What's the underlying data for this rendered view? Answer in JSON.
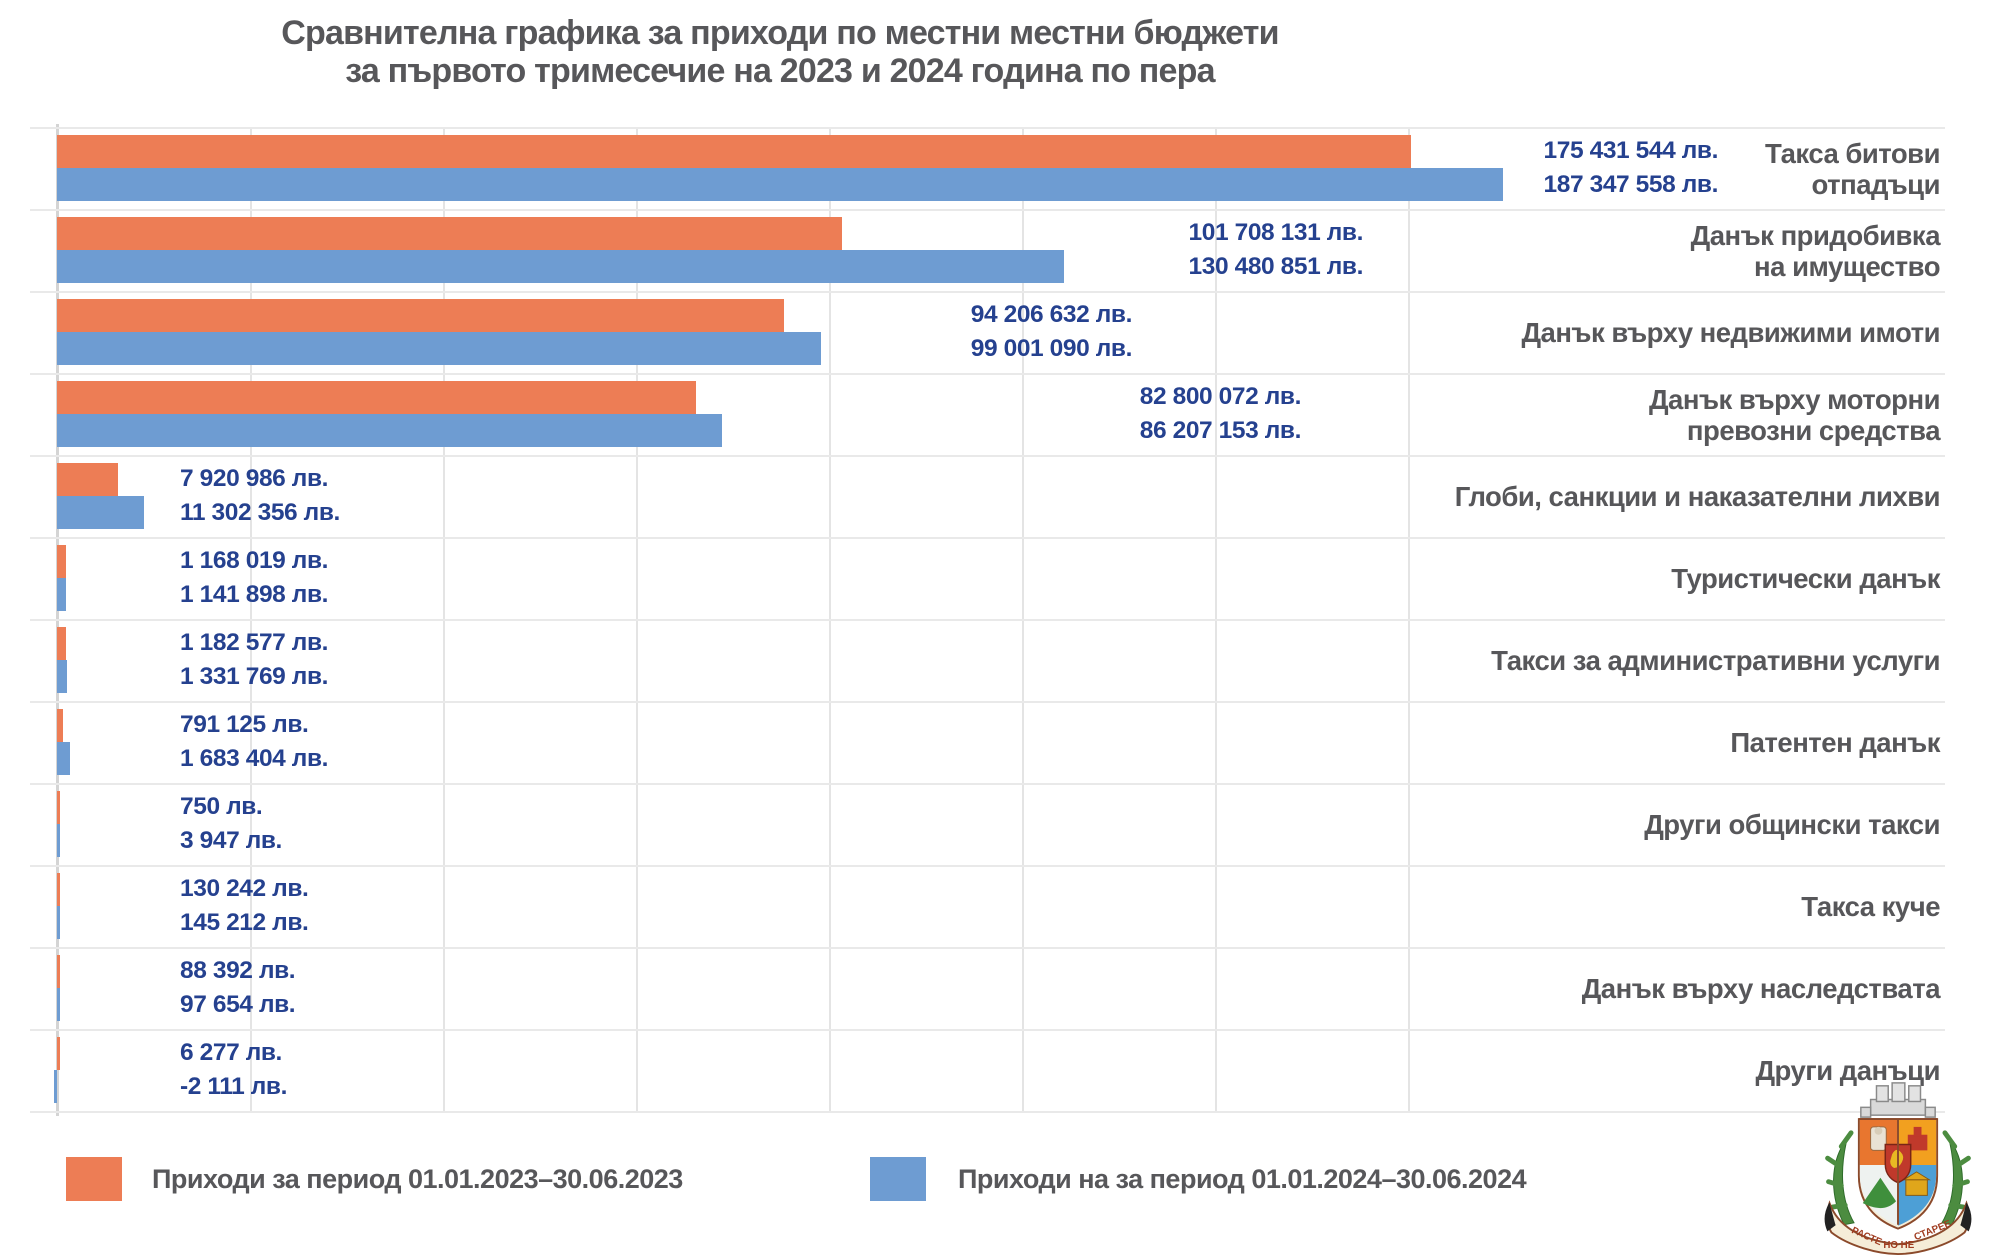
{
  "title": {
    "line1": "Сравнителна графика за приходи по местни местни бюджети",
    "line2": "за първото тримесечие на 2023 и 2024 година по пера"
  },
  "chart_data": {
    "type": "bar",
    "orientation": "horizontal",
    "unit": "лв.",
    "grid": true,
    "gridline_interval": 25000000,
    "xlim": [
      0,
      187347558
    ],
    "legend_position": "bottom",
    "categories": [
      {
        "name": "Такса битови отпадъци",
        "lines": [
          "Такса битови",
          "отпадъци"
        ]
      },
      {
        "name": "Данък придобивка на имущество",
        "lines": [
          "Данък придобивка",
          "на имущество"
        ]
      },
      {
        "name": "Данък върху недвижими имоти",
        "lines": [
          "Данък върху недвижими имоти"
        ]
      },
      {
        "name": "Данък върху моторни превозни средства",
        "lines": [
          "Данък върху моторни",
          "превозни средства"
        ]
      },
      {
        "name": "Глоби, санкции и наказателни лихви",
        "lines": [
          "Глоби, санкции и наказателни лихви"
        ]
      },
      {
        "name": "Туристически данък",
        "lines": [
          "Туристически данък"
        ]
      },
      {
        "name": "Такси за административни услуги",
        "lines": [
          "Такси за административни услуги"
        ]
      },
      {
        "name": "Патентен данък",
        "lines": [
          "Патентен данък"
        ]
      },
      {
        "name": "Други общински такси",
        "lines": [
          "Други общински такси"
        ]
      },
      {
        "name": "Такса куче",
        "lines": [
          "Такса куче"
        ]
      },
      {
        "name": "Данък върху наследствата",
        "lines": [
          "Данък върху наследствата"
        ]
      },
      {
        "name": "Други данъци",
        "lines": [
          "Други данъци"
        ]
      }
    ],
    "series": [
      {
        "name": "Приходи за период 01.01.2023–30.06.2023",
        "color": "#ED7D55",
        "values": [
          175431544,
          101708131,
          94206632,
          82800072,
          7920986,
          1168019,
          1182577,
          791125,
          750,
          130242,
          88392,
          6277
        ],
        "value_labels": [
          "175 431 544 лв.",
          "101 708 131 лв.",
          "94 206 632 лв.",
          "82 800 072 лв.",
          "7 920 986 лв.",
          "1 168 019 лв.",
          "1 182 577 лв.",
          "791 125 лв.",
          "750 лв.",
          "130 242 лв.",
          "88 392 лв.",
          "6 277 лв."
        ]
      },
      {
        "name": "Приходи на за период 01.01.2024–30.06.2024",
        "color": "#6E9CD2",
        "values": [
          187347558,
          130480851,
          99001090,
          86207153,
          11302356,
          1141898,
          1331769,
          1683404,
          3947,
          145212,
          97654,
          -2111
        ],
        "value_labels": [
          "187 347 558 лв.",
          "130 480 851 лв.",
          "99 001 090 лв.",
          "86 207 153 лв.",
          "11 302 356 лв.",
          "1 141 898 лв.",
          "1 331 769 лв.",
          "1 683 404 лв.",
          "3 947 лв.",
          "145 212 лв.",
          "97 654 лв.",
          "-2 111 лв."
        ]
      }
    ],
    "value_label_color": "#25418F"
  },
  "legend": {
    "items": [
      {
        "label": "Приходи за период 01.01.2023–30.06.2023",
        "color": "#ED7D55"
      },
      {
        "label": "Приходи на за период 01.01.2024–30.06.2024",
        "color": "#6E9CD2"
      }
    ]
  },
  "logo": {
    "name": "Герб на София",
    "motto_left": "РАСТЕ",
    "motto_center": "НО НЕ",
    "motto_right": "СТАРЕЕ"
  }
}
